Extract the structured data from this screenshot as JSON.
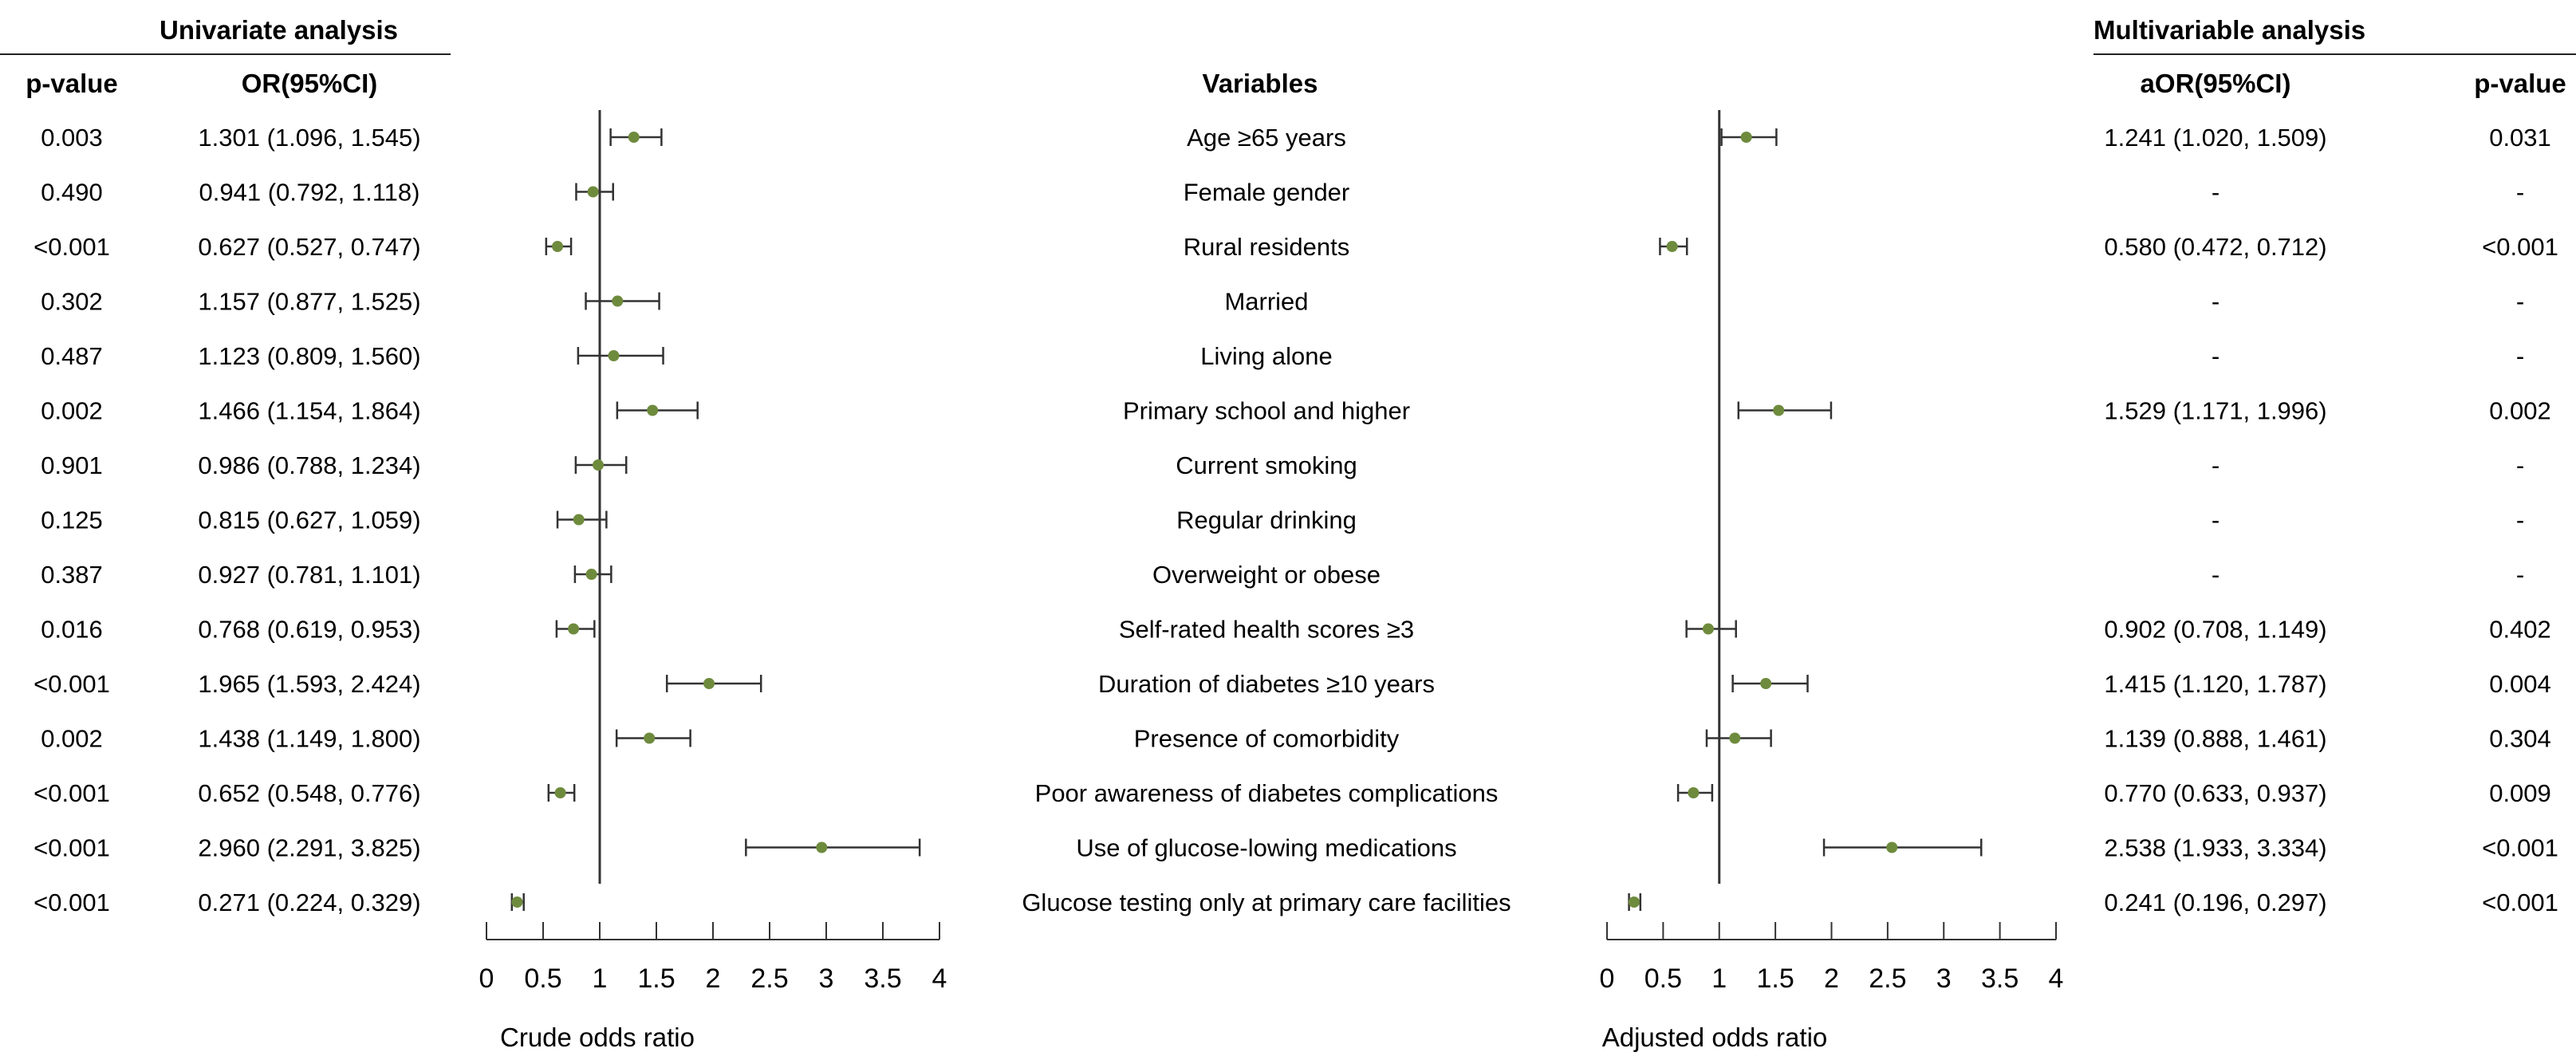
{
  "titles": {
    "univariate": "Univariate analysis",
    "multivariable": "Multivariable analysis"
  },
  "headers": {
    "p_left": "p-value",
    "or_left": "OR(95%CI)",
    "variables": "Variables",
    "aor_right": "aOR(95%CI)",
    "p_right": "p-value"
  },
  "rows": [
    {
      "p": "0.003",
      "or": "1.301 (1.096, 1.545)",
      "variable": "Age ≥65 years",
      "aor": "1.241 (1.020, 1.509)",
      "ap": "0.031"
    },
    {
      "p": "0.490",
      "or": "0.941 (0.792, 1.118)",
      "variable": "Female gender",
      "aor": "-",
      "ap": "-"
    },
    {
      "p": "<0.001",
      "or": "0.627 (0.527, 0.747)",
      "variable": "Rural residents",
      "aor": "0.580 (0.472, 0.712)",
      "ap": "<0.001"
    },
    {
      "p": "0.302",
      "or": "1.157 (0.877, 1.525)",
      "variable": "Married",
      "aor": "-",
      "ap": "-"
    },
    {
      "p": "0.487",
      "or": "1.123 (0.809, 1.560)",
      "variable": "Living alone",
      "aor": "-",
      "ap": "-"
    },
    {
      "p": "0.002",
      "or": "1.466 (1.154, 1.864)",
      "variable": "Primary school and higher",
      "aor": "1.529 (1.171, 1.996)",
      "ap": "0.002"
    },
    {
      "p": "0.901",
      "or": "0.986 (0.788, 1.234)",
      "variable": "Current smoking",
      "aor": "-",
      "ap": "-"
    },
    {
      "p": "0.125",
      "or": "0.815 (0.627, 1.059)",
      "variable": "Regular drinking",
      "aor": "-",
      "ap": "-"
    },
    {
      "p": "0.387",
      "or": "0.927 (0.781, 1.101)",
      "variable": "Overweight or obese",
      "aor": "-",
      "ap": "-"
    },
    {
      "p": "0.016",
      "or": "0.768 (0.619, 0.953)",
      "variable": "Self-rated health scores ≥3",
      "aor": "0.902 (0.708, 1.149)",
      "ap": "0.402"
    },
    {
      "p": "<0.001",
      "or": "1.965 (1.593, 2.424)",
      "variable": "Duration of diabetes ≥10 years",
      "aor": "1.415 (1.120, 1.787)",
      "ap": "0.004"
    },
    {
      "p": "0.002",
      "or": "1.438 (1.149, 1.800)",
      "variable": "Presence of comorbidity",
      "aor": "1.139 (0.888, 1.461)",
      "ap": "0.304"
    },
    {
      "p": "<0.001",
      "or": "0.652 (0.548, 0.776)",
      "variable": "Poor awareness of diabetes complications",
      "aor": "0.770 (0.633, 0.937)",
      "ap": "0.009"
    },
    {
      "p": "<0.001",
      "or": "2.960 (2.291, 3.825)",
      "variable": "Use of glucose-lowing medications",
      "aor": "2.538 (1.933, 3.334)",
      "ap": "<0.001"
    },
    {
      "p": "<0.001",
      "or": "0.271 (0.224, 0.329)",
      "variable": "Glucose testing only at primary care facilities",
      "aor": "0.241 (0.196, 0.297)",
      "ap": "<0.001"
    }
  ],
  "colors": {
    "point": "#6e8b3d",
    "line": "#333333"
  },
  "chart_data": [
    {
      "type": "forest",
      "name": "crude",
      "xlabel": "Crude odds ratio",
      "xlim": [
        0,
        4
      ],
      "reference": 1,
      "ticks": [
        0,
        0.5,
        1,
        1.5,
        2,
        2.5,
        3,
        3.5,
        4
      ],
      "tick_labels": [
        "0",
        "0.5",
        "1",
        "1.5",
        "2",
        "2.5",
        "3",
        "3.5",
        "4"
      ],
      "estimates": [
        1.301,
        0.941,
        0.627,
        1.157,
        1.123,
        1.466,
        0.986,
        0.815,
        0.927,
        0.768,
        1.965,
        1.438,
        0.652,
        2.96,
        0.271
      ],
      "lower": [
        1.096,
        0.792,
        0.527,
        0.877,
        0.809,
        1.154,
        0.788,
        0.627,
        0.781,
        0.619,
        1.593,
        1.149,
        0.548,
        2.291,
        0.224
      ],
      "upper": [
        1.545,
        1.118,
        0.747,
        1.525,
        1.56,
        1.864,
        1.234,
        1.059,
        1.101,
        0.953,
        2.424,
        1.8,
        0.776,
        3.825,
        0.329
      ]
    },
    {
      "type": "forest",
      "name": "adjusted",
      "xlabel": "Adjusted odds ratio",
      "xlim": [
        0,
        4
      ],
      "reference": 1,
      "ticks": [
        0,
        0.5,
        1,
        1.5,
        2,
        2.5,
        3,
        3.5,
        4
      ],
      "tick_labels": [
        "0",
        "0.5",
        "1",
        "1.5",
        "2",
        "2.5",
        "3",
        "3.5",
        "4"
      ],
      "estimates": [
        1.241,
        null,
        0.58,
        null,
        null,
        1.529,
        null,
        null,
        null,
        0.902,
        1.415,
        1.139,
        0.77,
        2.538,
        0.241
      ],
      "lower": [
        1.02,
        null,
        0.472,
        null,
        null,
        1.171,
        null,
        null,
        null,
        0.708,
        1.12,
        0.888,
        0.633,
        1.933,
        0.196
      ],
      "upper": [
        1.509,
        null,
        0.712,
        null,
        null,
        1.996,
        null,
        null,
        null,
        1.149,
        1.787,
        1.461,
        0.937,
        3.334,
        0.297
      ]
    }
  ]
}
